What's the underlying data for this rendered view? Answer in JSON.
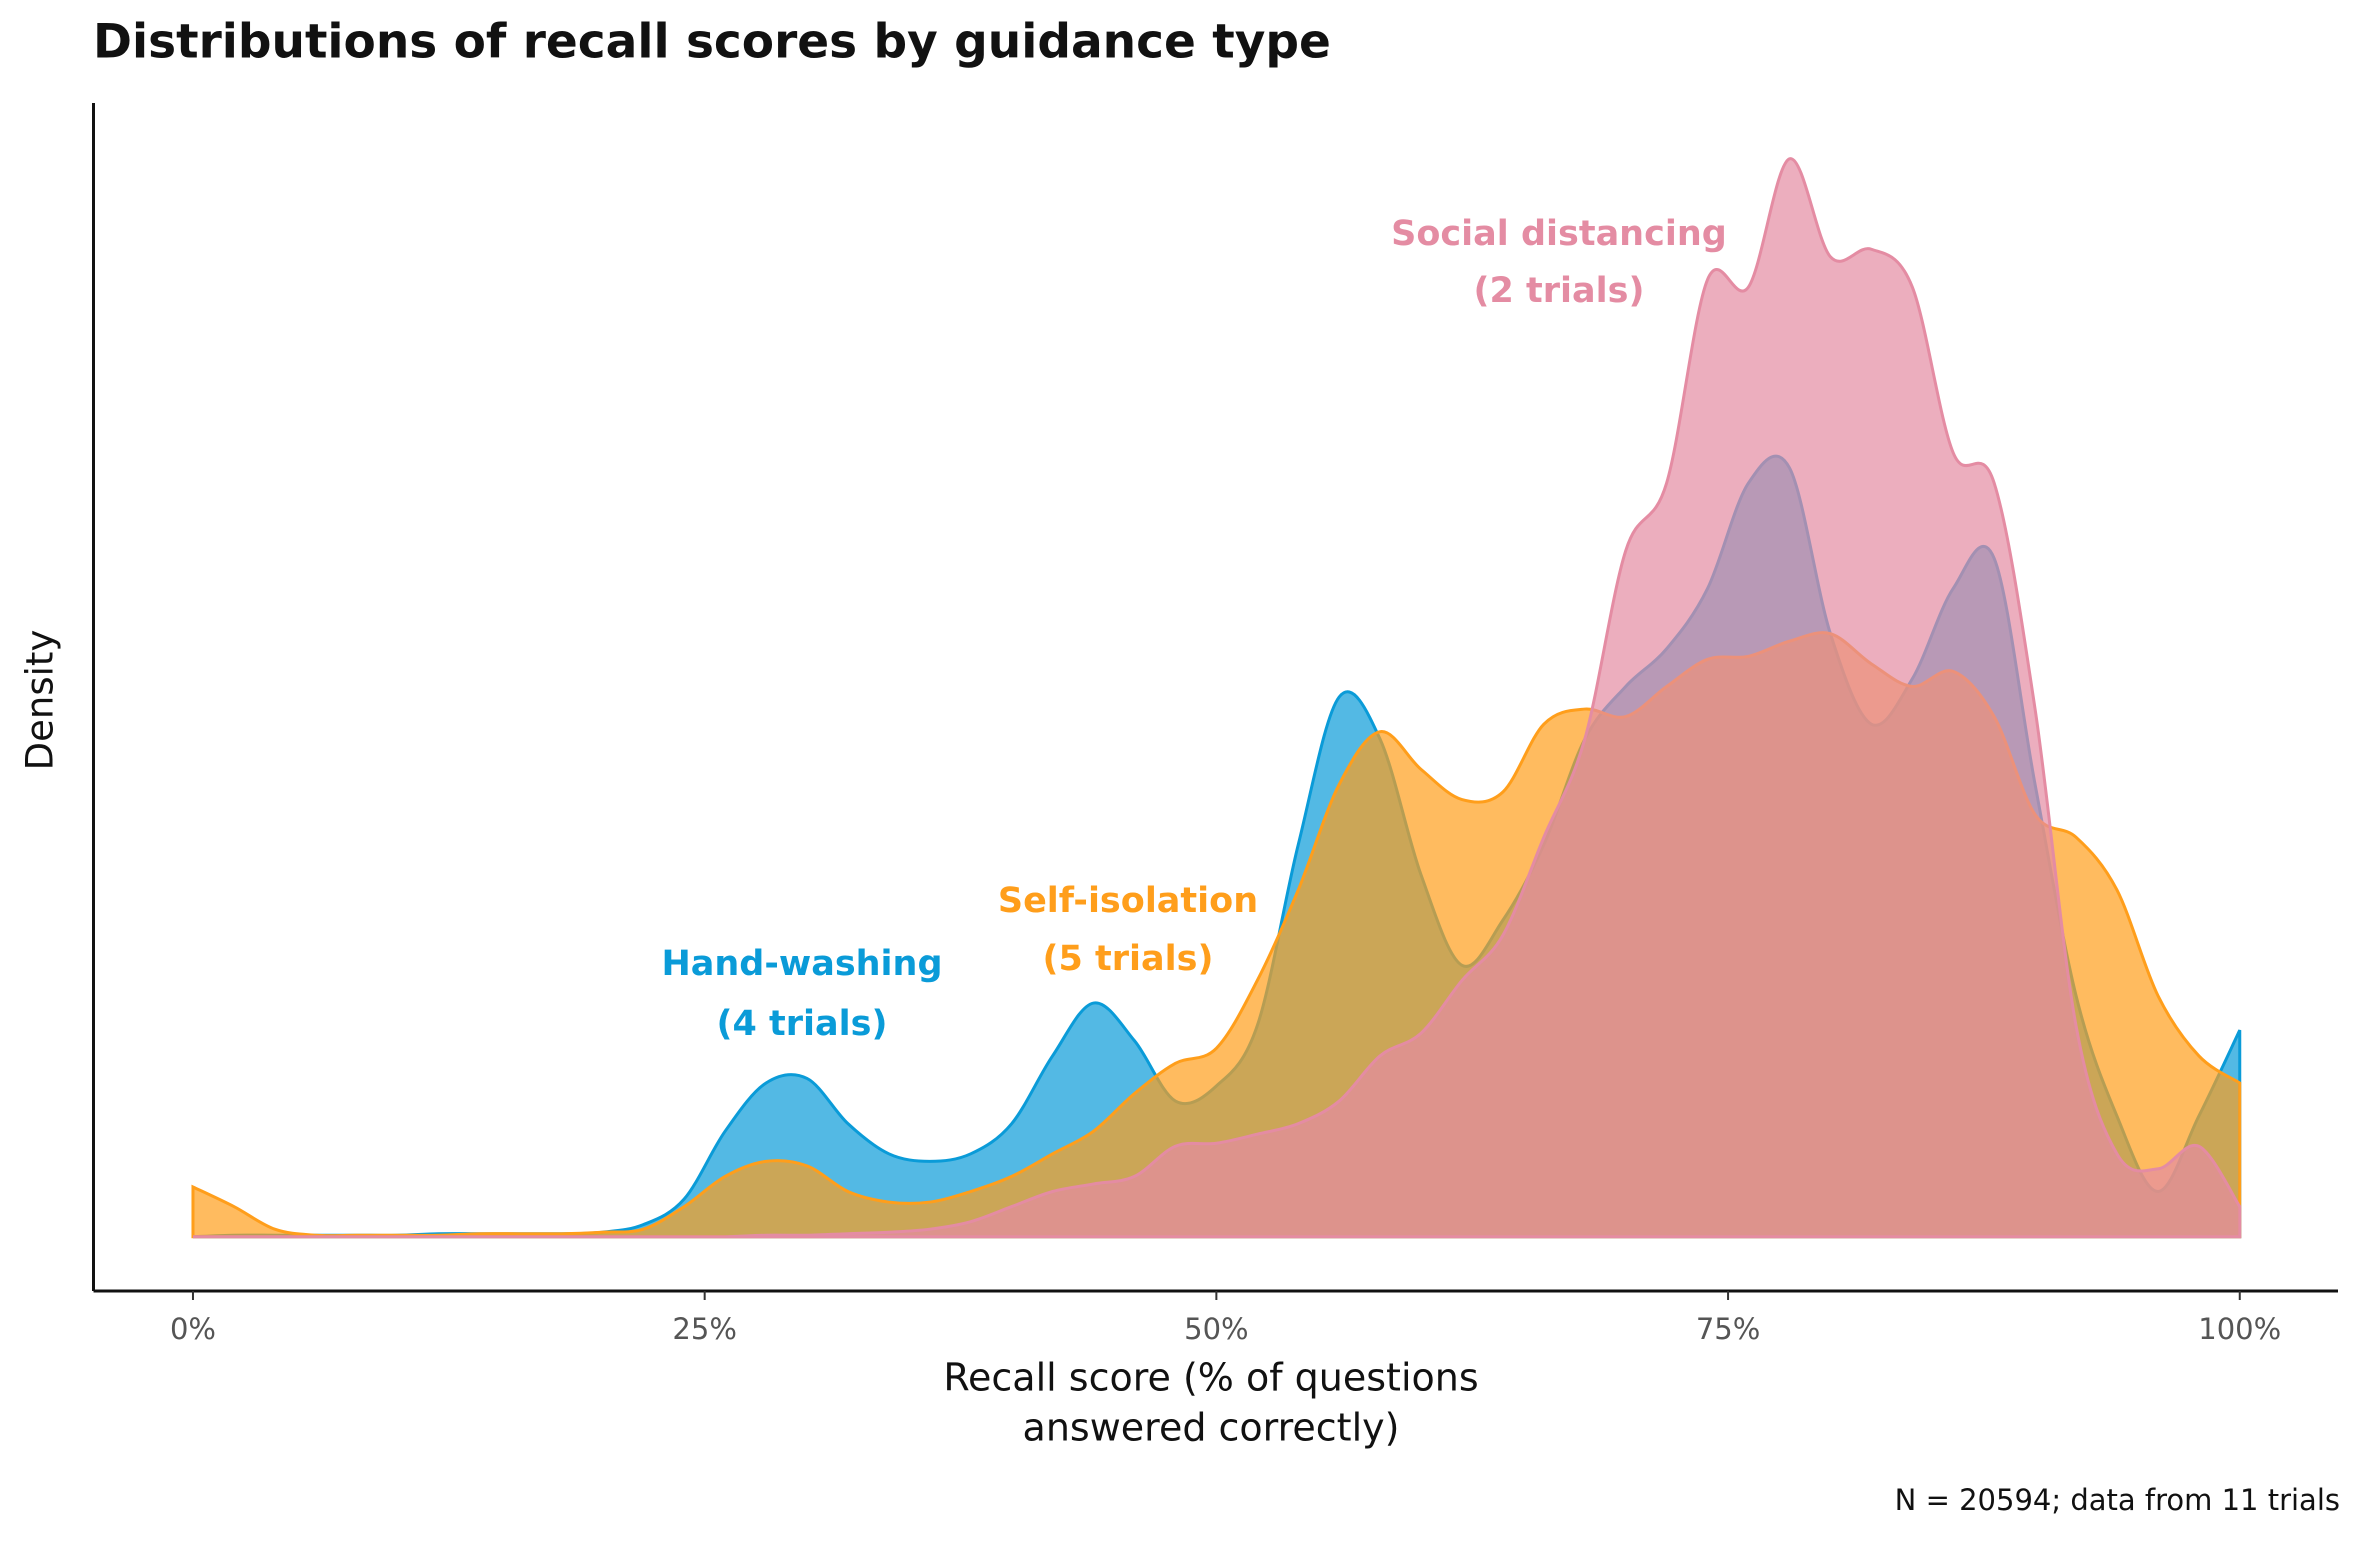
{
  "chart_data": {
    "type": "density",
    "title": "Distributions of recall scores by guidance type",
    "xlabel": [
      "Recall score (% of questions",
      "answered correctly)"
    ],
    "ylabel": "Density",
    "caption": "N = 20594; data from 11 trials",
    "xlim": [
      -4.86,
      104.8
    ],
    "ylim": [
      -0.0036,
      0.0752
    ],
    "xticks": [
      {
        "value": 0,
        "label": "0%"
      },
      {
        "value": 25,
        "label": "25%"
      },
      {
        "value": 50,
        "label": "50%"
      },
      {
        "value": 75,
        "label": "75%"
      },
      {
        "value": 100,
        "label": "100%"
      }
    ],
    "x": [
      0,
      2,
      4,
      6,
      8,
      10,
      12,
      14,
      16,
      18,
      20,
      22,
      24,
      26,
      28,
      30,
      32,
      34,
      36,
      38,
      40,
      42,
      44,
      46,
      48,
      50,
      52,
      54,
      56,
      58,
      60,
      62,
      64,
      66,
      68,
      70,
      72,
      74,
      76,
      78,
      80,
      82,
      84,
      86,
      88,
      90,
      92,
      94,
      96,
      98,
      100
    ],
    "series": [
      {
        "name": "Hand-washing",
        "note": "(4 trials)",
        "color": "#0a9bd8",
        "values": [
          0,
          0.0001,
          0.0001,
          0.0001,
          0.0001,
          0.0001,
          0.0002,
          0.0002,
          0.0002,
          0.0002,
          0.0003,
          0.0008,
          0.0025,
          0.007,
          0.0102,
          0.0105,
          0.0075,
          0.0055,
          0.005,
          0.0055,
          0.0075,
          0.012,
          0.0155,
          0.013,
          0.009,
          0.01,
          0.014,
          0.026,
          0.0358,
          0.033,
          0.024,
          0.018,
          0.021,
          0.026,
          0.033,
          0.0365,
          0.039,
          0.043,
          0.05,
          0.051,
          0.04,
          0.034,
          0.037,
          0.043,
          0.045,
          0.03,
          0.016,
          0.008,
          0.003,
          0.008,
          0.0137
        ]
      },
      {
        "name": "Self-isolation",
        "note": "(5 trials)",
        "color": "#ff9e1b",
        "values": [
          0.0033,
          0.002,
          0.0005,
          0.0001,
          0.0001,
          0.0001,
          0.0001,
          0.0002,
          0.0002,
          0.0002,
          0.0003,
          0.0005,
          0.002,
          0.004,
          0.005,
          0.0047,
          0.003,
          0.0023,
          0.0023,
          0.003,
          0.004,
          0.0055,
          0.007,
          0.0095,
          0.0115,
          0.0125,
          0.017,
          0.023,
          0.03,
          0.0335,
          0.031,
          0.029,
          0.0295,
          0.034,
          0.035,
          0.0345,
          0.0365,
          0.0383,
          0.0385,
          0.0395,
          0.04,
          0.038,
          0.0365,
          0.0375,
          0.0345,
          0.028,
          0.0265,
          0.023,
          0.016,
          0.012,
          0.0102
        ]
      },
      {
        "name": "Social distancing",
        "note": "(2 trials)",
        "color": "#e48ca3",
        "values": [
          0,
          0,
          0,
          0,
          0,
          0,
          0,
          0,
          0,
          0,
          0,
          0,
          0,
          0,
          0.0001,
          0.0001,
          0.0002,
          0.0003,
          0.0005,
          0.001,
          0.002,
          0.003,
          0.0035,
          0.004,
          0.006,
          0.0062,
          0.0068,
          0.0075,
          0.009,
          0.012,
          0.0135,
          0.017,
          0.02,
          0.0265,
          0.033,
          0.0455,
          0.05,
          0.0635,
          0.063,
          0.0715,
          0.065,
          0.0655,
          0.063,
          0.052,
          0.05,
          0.035,
          0.014,
          0.0055,
          0.0045,
          0.006,
          0.002
        ]
      }
    ]
  }
}
